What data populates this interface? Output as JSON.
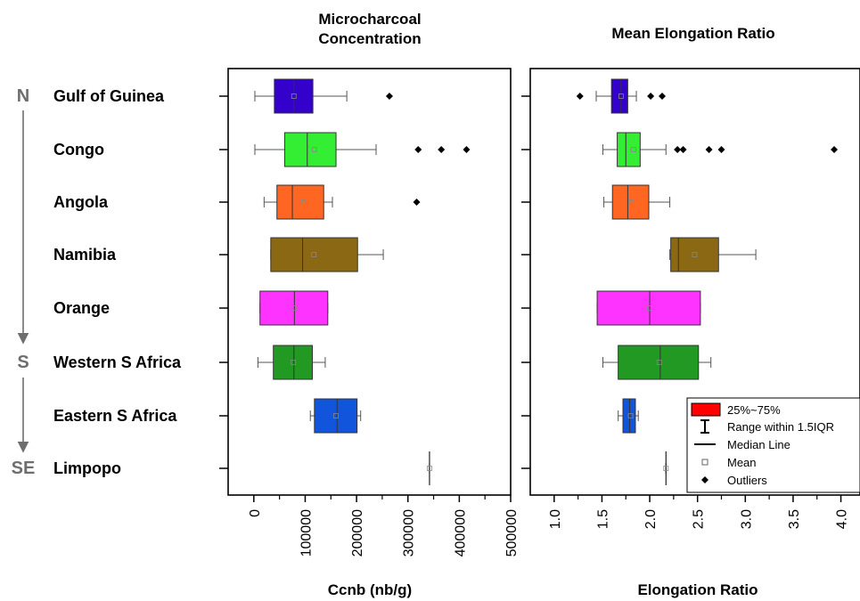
{
  "directions": [
    {
      "label": "N",
      "row": 0
    },
    {
      "label": "S",
      "row": 5
    },
    {
      "label": "SE",
      "row": 7
    }
  ],
  "regions": [
    "Gulf of Guinea",
    "Congo",
    "Angola",
    "Namibia",
    "Orange",
    "Western S Africa",
    "Eastern S Africa",
    "Limpopo"
  ],
  "colors": [
    "#3300cc",
    "#33ee33",
    "#ff6622",
    "#8b6914",
    "#ff33ff",
    "#229922",
    "#1155dd",
    "#888888"
  ],
  "legend": {
    "box": "25%~75%",
    "range": "Range within 1.5IQR",
    "median": "Median Line",
    "mean": "Mean",
    "outliers": "Outliers",
    "box_color": "#ff0000"
  },
  "chart_data": [
    {
      "type": "box",
      "title": "Microcharcoal Concentration",
      "xlabel": "Ccnb (nb/g)",
      "xlim": [
        -50000,
        500000
      ],
      "ticks": [
        0,
        100000,
        200000,
        300000,
        400000,
        500000
      ],
      "tick_labels": [
        "0",
        "100000",
        "200000",
        "300000",
        "400000",
        "500000"
      ],
      "series": [
        {
          "name": "Gulf of Guinea",
          "whisker_low": 2000,
          "q1": 40000,
          "median": 78000,
          "q3": 115000,
          "whisker_high": 181000,
          "mean": 78000,
          "outliers": [
            264000
          ]
        },
        {
          "name": "Congo",
          "whisker_low": 2000,
          "q1": 60000,
          "median": 104000,
          "q3": 160000,
          "whisker_high": 238000,
          "mean": 118000,
          "outliers": [
            320000,
            365000,
            414000
          ]
        },
        {
          "name": "Angola",
          "whisker_low": 20000,
          "q1": 45000,
          "median": 75000,
          "q3": 136000,
          "whisker_high": 153000,
          "mean": 97000,
          "outliers": [
            317000
          ]
        },
        {
          "name": "Namibia",
          "whisker_low": 33000,
          "q1": 33000,
          "median": 95000,
          "q3": 202000,
          "whisker_high": 252000,
          "mean": 117000,
          "outliers": []
        },
        {
          "name": "Orange",
          "whisker_low": 12000,
          "q1": 12000,
          "median": 79000,
          "q3": 144000,
          "whisker_high": 144000,
          "mean": 78000,
          "outliers": []
        },
        {
          "name": "Western S Africa",
          "whisker_low": 8000,
          "q1": 38000,
          "median": 78000,
          "q3": 114000,
          "whisker_high": 139000,
          "mean": 77000,
          "outliers": []
        },
        {
          "name": "Eastern S Africa",
          "whisker_low": 110000,
          "q1": 118000,
          "median": 162000,
          "q3": 201000,
          "whisker_high": 208000,
          "mean": 160000,
          "outliers": []
        },
        {
          "name": "Limpopo",
          "whisker_low": 342000,
          "q1": 342000,
          "median": 342000,
          "q3": 342000,
          "whisker_high": 342000,
          "mean": 342000,
          "outliers": []
        }
      ]
    },
    {
      "type": "box",
      "title": "Mean Elongation Ratio",
      "xlabel": "Elongation Ratio",
      "xlim": [
        0.75,
        4.2
      ],
      "ticks": [
        1.0,
        1.5,
        2.0,
        2.5,
        3.0,
        3.5,
        4.0
      ],
      "tick_labels": [
        "1.0",
        "1.5",
        "2.0",
        "2.5",
        "3.0",
        "3.5",
        "4.0"
      ],
      "series": [
        {
          "name": "Gulf of Guinea",
          "whisker_low": 1.44,
          "q1": 1.6,
          "median": 1.7,
          "q3": 1.77,
          "whisker_high": 1.86,
          "mean": 1.7,
          "outliers": [
            1.27,
            2.01,
            2.13
          ]
        },
        {
          "name": "Congo",
          "whisker_low": 1.51,
          "q1": 1.66,
          "median": 1.75,
          "q3": 1.9,
          "whisker_high": 2.17,
          "mean": 1.83,
          "outliers": [
            2.29,
            2.35,
            2.62,
            2.75,
            3.93
          ]
        },
        {
          "name": "Angola",
          "whisker_low": 1.52,
          "q1": 1.61,
          "median": 1.77,
          "q3": 1.99,
          "whisker_high": 2.21,
          "mean": 1.81,
          "outliers": []
        },
        {
          "name": "Namibia",
          "whisker_low": 2.21,
          "q1": 2.22,
          "median": 2.3,
          "q3": 2.72,
          "whisker_high": 3.11,
          "mean": 2.47,
          "outliers": []
        },
        {
          "name": "Orange",
          "whisker_low": 1.45,
          "q1": 1.45,
          "median": 2.0,
          "q3": 2.53,
          "whisker_high": 2.53,
          "mean": 2.0,
          "outliers": []
        },
        {
          "name": "Western S Africa",
          "whisker_low": 1.51,
          "q1": 1.67,
          "median": 2.11,
          "q3": 2.51,
          "whisker_high": 2.64,
          "mean": 2.1,
          "outliers": []
        },
        {
          "name": "Eastern S Africa",
          "whisker_low": 1.67,
          "q1": 1.72,
          "median": 1.79,
          "q3": 1.85,
          "whisker_high": 1.88,
          "mean": 1.8,
          "outliers": []
        },
        {
          "name": "Limpopo",
          "whisker_low": 2.17,
          "q1": 2.17,
          "median": 2.17,
          "q3": 2.17,
          "whisker_high": 2.17,
          "mean": 2.17,
          "outliers": []
        }
      ]
    }
  ]
}
